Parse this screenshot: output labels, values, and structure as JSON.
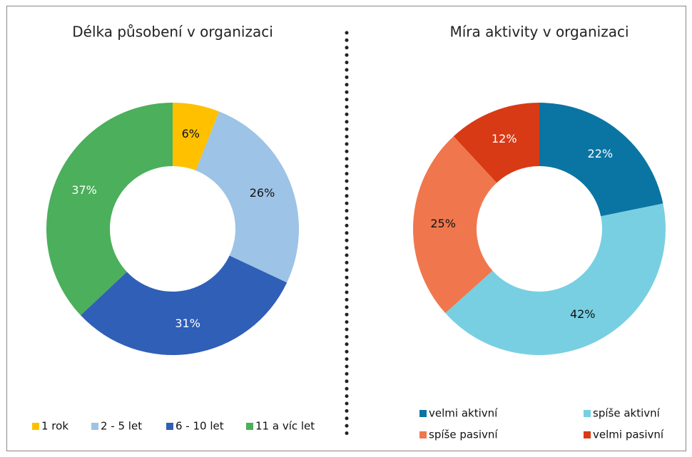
{
  "chart_data": [
    {
      "type": "donut",
      "title": "Délka působení v organizaci",
      "categories": [
        "1 rok",
        "2 - 5 let",
        "6 - 10 let",
        "11 a víc let"
      ],
      "values": [
        6,
        26,
        31,
        37
      ],
      "value_labels": [
        "6%",
        "26%",
        "31%",
        "37%"
      ],
      "colors": [
        "#ffc000",
        "#9dc3e6",
        "#2f5fb7",
        "#4caf5b"
      ],
      "legend": "bottom"
    },
    {
      "type": "donut",
      "title": "Míra aktivity v organizaci",
      "categories": [
        "velmi aktivní",
        "spíše aktivní",
        "spíše pasivní",
        "velmi pasivní"
      ],
      "values": [
        22,
        42,
        25,
        12
      ],
      "value_labels": [
        "22%",
        "42%",
        "25%",
        "12%"
      ],
      "colors": [
        "#0a75a3",
        "#78cfe2",
        "#f0774d",
        "#d83a16"
      ],
      "legend": "bottom"
    }
  ]
}
